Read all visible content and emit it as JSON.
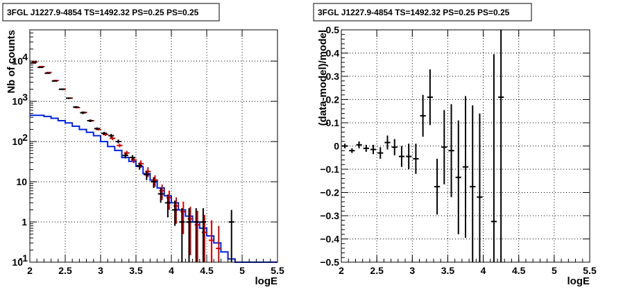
{
  "chart_data": [
    {
      "type": "line",
      "title": "3FGL J1227.9-4854 TS=1492.32 PS=0.25 PS=0.25",
      "xlabel": "logE",
      "ylabel": "Nb of counts",
      "xlim": [
        2,
        5.5
      ],
      "ylim": [
        0.1,
        60000
      ],
      "yscale": "log",
      "grid": true,
      "xticks": [
        "2",
        "2.5",
        "3",
        "3.5",
        "4",
        "4.5",
        "5",
        "5.5"
      ],
      "yticks": [
        {
          "value": 0.1,
          "label": "10",
          "exp": "-1"
        },
        {
          "value": 1,
          "label": "1",
          "exp": ""
        },
        {
          "value": 10,
          "label": "10",
          "exp": ""
        },
        {
          "value": 100,
          "label": "10",
          "exp": "2"
        },
        {
          "value": 1000,
          "label": "10",
          "exp": "3"
        },
        {
          "value": 10000,
          "label": "10",
          "exp": "4"
        }
      ],
      "bin_edges": [
        2.0,
        2.1,
        2.2,
        2.3,
        2.4,
        2.5,
        2.6,
        2.7,
        2.8,
        2.9,
        3.0,
        3.1,
        3.2,
        3.3,
        3.4,
        3.5,
        3.6,
        3.7,
        3.8,
        3.9,
        4.0,
        4.1,
        4.2,
        4.3,
        4.4,
        4.5,
        4.6,
        4.7,
        4.8,
        4.9,
        5.0,
        5.1,
        5.2,
        5.3,
        5.4,
        5.5
      ],
      "series": [
        {
          "kind": "data",
          "color": "#000000",
          "points": [
            {
              "x": 2.05,
              "y": 9000,
              "lo": 8800,
              "hi": 9200
            },
            {
              "x": 2.15,
              "y": 7000,
              "lo": 6850,
              "hi": 7150
            },
            {
              "x": 2.25,
              "y": 5000,
              "lo": 4880,
              "hi": 5120
            },
            {
              "x": 2.35,
              "y": 3200,
              "lo": 3100,
              "hi": 3300
            },
            {
              "x": 2.45,
              "y": 2000,
              "lo": 1920,
              "hi": 2080
            },
            {
              "x": 2.55,
              "y": 1200,
              "lo": 1140,
              "hi": 1260
            },
            {
              "x": 2.65,
              "y": 720,
              "lo": 680,
              "hi": 760
            },
            {
              "x": 2.75,
              "y": 520,
              "lo": 480,
              "hi": 560
            },
            {
              "x": 2.85,
              "y": 330,
              "lo": 305,
              "hi": 355
            },
            {
              "x": 2.95,
              "y": 210,
              "lo": 195,
              "hi": 225
            },
            {
              "x": 3.05,
              "y": 160,
              "lo": 145,
              "hi": 175
            },
            {
              "x": 3.15,
              "y": 140,
              "lo": 125,
              "hi": 155
            },
            {
              "x": 3.25,
              "y": 100,
              "lo": 90,
              "hi": 112
            },
            {
              "x": 3.35,
              "y": 45,
              "lo": 38,
              "hi": 52
            },
            {
              "x": 3.45,
              "y": 40,
              "lo": 34,
              "hi": 46
            },
            {
              "x": 3.55,
              "y": 25,
              "lo": 20,
              "hi": 30
            },
            {
              "x": 3.65,
              "y": 15,
              "lo": 11,
              "hi": 19
            },
            {
              "x": 3.75,
              "y": 10,
              "lo": 7,
              "hi": 13
            },
            {
              "x": 3.85,
              "y": 5,
              "lo": 3,
              "hi": 7
            },
            {
              "x": 3.95,
              "y": 3,
              "lo": 1.3,
              "hi": 4.8
            },
            {
              "x": 4.05,
              "y": 2,
              "lo": 0.8,
              "hi": 3.4
            },
            {
              "x": 4.15,
              "y": 1,
              "lo": 0.1,
              "hi": 2.2
            },
            {
              "x": 4.25,
              "y": 1,
              "lo": 0.1,
              "hi": 2.2
            },
            {
              "x": 4.35,
              "y": 1,
              "lo": 0.1,
              "hi": 2.2
            },
            {
              "x": 4.45,
              "y": 1,
              "lo": 0.1,
              "hi": 2.2
            },
            {
              "x": 4.85,
              "y": 1,
              "lo": 0.1,
              "hi": 2.0
            }
          ]
        },
        {
          "kind": "model-total",
          "color": "#cc0000",
          "points": [
            {
              "x": 2.05,
              "y": 9500,
              "lo": 9300,
              "hi": 9700
            },
            {
              "x": 2.15,
              "y": 7300,
              "lo": 7150,
              "hi": 7450
            },
            {
              "x": 2.25,
              "y": 5200,
              "lo": 5080,
              "hi": 5320
            },
            {
              "x": 2.35,
              "y": 3300,
              "lo": 3200,
              "hi": 3400
            },
            {
              "x": 2.45,
              "y": 2000,
              "lo": 1930,
              "hi": 2070
            },
            {
              "x": 2.55,
              "y": 1200,
              "lo": 1150,
              "hi": 1250
            },
            {
              "x": 2.65,
              "y": 700,
              "lo": 670,
              "hi": 730
            },
            {
              "x": 2.75,
              "y": 530,
              "lo": 505,
              "hi": 555
            },
            {
              "x": 2.85,
              "y": 330,
              "lo": 310,
              "hi": 350
            },
            {
              "x": 2.95,
              "y": 200,
              "lo": 188,
              "hi": 212
            },
            {
              "x": 3.05,
              "y": 150,
              "lo": 138,
              "hi": 162
            },
            {
              "x": 3.15,
              "y": 120,
              "lo": 108,
              "hi": 132
            },
            {
              "x": 3.25,
              "y": 80,
              "lo": 72,
              "hi": 88
            },
            {
              "x": 3.35,
              "y": 52,
              "lo": 45,
              "hi": 59
            },
            {
              "x": 3.45,
              "y": 35,
              "lo": 29,
              "hi": 41
            },
            {
              "x": 3.55,
              "y": 28,
              "lo": 22,
              "hi": 34
            },
            {
              "x": 3.65,
              "y": 18,
              "lo": 13,
              "hi": 23
            },
            {
              "x": 3.75,
              "y": 11,
              "lo": 7.5,
              "hi": 14.5
            },
            {
              "x": 3.85,
              "y": 6,
              "lo": 3.5,
              "hi": 8.5
            },
            {
              "x": 3.95,
              "y": 4,
              "lo": 2,
              "hi": 6
            },
            {
              "x": 4.05,
              "y": 2.5,
              "lo": 0.9,
              "hi": 4.1
            },
            {
              "x": 4.15,
              "y": 1.8,
              "lo": 0.5,
              "hi": 3.2
            },
            {
              "x": 4.25,
              "y": 1.2,
              "lo": 0.15,
              "hi": 2.4
            },
            {
              "x": 4.35,
              "y": 0.85,
              "lo": 0.1,
              "hi": 1.9
            },
            {
              "x": 4.45,
              "y": 0.55,
              "lo": 0.1,
              "hi": 1.5
            },
            {
              "x": 4.55,
              "y": 0.35,
              "lo": 0.1,
              "hi": 1.1
            },
            {
              "x": 4.65,
              "y": 0.22,
              "lo": 0.1,
              "hi": 0.8
            }
          ]
        },
        {
          "kind": "model-component",
          "color": "#0022dd",
          "values": [
            450,
            450,
            420,
            380,
            330,
            290,
            240,
            200,
            170,
            140,
            100,
            75,
            60,
            40,
            32,
            24,
            16,
            11,
            7,
            4.5,
            3,
            2,
            1.4,
            1.0,
            0.7,
            0.45,
            0.3,
            0.18,
            0.12,
            0.1,
            0.1,
            0.1,
            0.1,
            0.1,
            0.1
          ]
        }
      ]
    },
    {
      "type": "scatter",
      "title": "3FGL J1227.9-4854 TS=1492.32 PS=0.25 PS=0.25",
      "xlabel": "logE",
      "ylabel": "(data-model)/model",
      "xlim": [
        2,
        5.5
      ],
      "ylim": [
        -0.5,
        0.5
      ],
      "grid": true,
      "xticks": [
        "2",
        "2.5",
        "3",
        "3.5",
        "4",
        "4.5",
        "5",
        "5.5"
      ],
      "yticks": [
        "−0.5",
        "−0.4",
        "−0.3",
        "−0.2",
        "−0.1",
        "0",
        "0.1",
        "0.2",
        "0.3",
        "0.4",
        "0.5"
      ],
      "yvalues": [
        -0.5,
        -0.4,
        -0.3,
        -0.2,
        -0.1,
        0,
        0.1,
        0.2,
        0.3,
        0.4,
        0.5
      ],
      "series": [
        {
          "kind": "residual",
          "color": "#000000",
          "points": [
            {
              "x": 2.05,
              "y": 0.0,
              "err": 0.01
            },
            {
              "x": 2.15,
              "y": -0.02,
              "err": 0.01
            },
            {
              "x": 2.25,
              "y": 0.005,
              "err": 0.015
            },
            {
              "x": 2.35,
              "y": -0.01,
              "err": 0.015
            },
            {
              "x": 2.45,
              "y": -0.015,
              "err": 0.02
            },
            {
              "x": 2.55,
              "y": -0.03,
              "err": 0.025
            },
            {
              "x": 2.65,
              "y": 0.015,
              "err": 0.03
            },
            {
              "x": 2.75,
              "y": -0.005,
              "err": 0.035
            },
            {
              "x": 2.85,
              "y": -0.045,
              "err": 0.045
            },
            {
              "x": 2.95,
              "y": -0.045,
              "err": 0.055
            },
            {
              "x": 3.05,
              "y": -0.055,
              "err": 0.065
            },
            {
              "x": 3.15,
              "y": 0.13,
              "err": 0.09
            },
            {
              "x": 3.25,
              "y": 0.21,
              "err": 0.12
            },
            {
              "x": 3.35,
              "y": -0.175,
              "err": 0.12
            },
            {
              "x": 3.45,
              "y": -0.005,
              "err": 0.16
            },
            {
              "x": 3.55,
              "y": -0.02,
              "err": 0.2
            },
            {
              "x": 3.65,
              "y": -0.135,
              "err": 0.245
            },
            {
              "x": 3.75,
              "y": -0.09,
              "err": 0.305
            },
            {
              "x": 3.85,
              "y": -0.175,
              "err": 0.35
            },
            {
              "x": 3.95,
              "y": -0.22,
              "err": 0.36
            },
            {
              "x": 4.15,
              "y": -0.325,
              "err": 0.72
            },
            {
              "x": 4.25,
              "y": 0.21,
              "err": 0.75
            }
          ]
        }
      ]
    }
  ]
}
